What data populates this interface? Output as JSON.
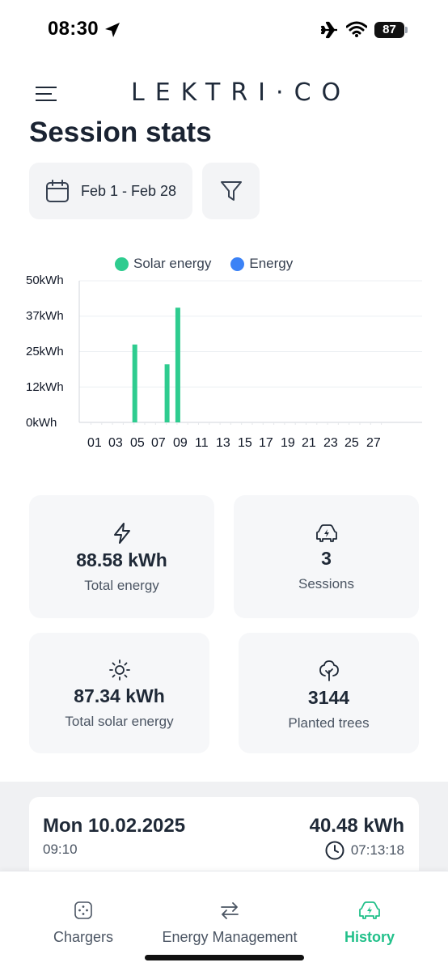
{
  "status_bar": {
    "time": "08:30",
    "battery": "87"
  },
  "header": {
    "logo": "LEKTRI·CO"
  },
  "page": {
    "title": "Session stats"
  },
  "filters": {
    "date_range": "Feb 1 - Feb 28"
  },
  "colors": {
    "solar": "#2ecc8f",
    "energy": "#3b82f6",
    "accent": "#22c08a"
  },
  "chart_data": {
    "type": "bar",
    "legend": [
      "Solar energy",
      "Energy"
    ],
    "legend_position": "top",
    "y_ticks": [
      "50kWh",
      "37kWh",
      "25kWh",
      "12kWh",
      "0kWh"
    ],
    "ylim": [
      0,
      50
    ],
    "x_ticks": [
      "01",
      "03",
      "05",
      "07",
      "09",
      "11",
      "13",
      "15",
      "17",
      "19",
      "21",
      "23",
      "25",
      "27"
    ],
    "x_days": 28,
    "grid": true,
    "series": [
      {
        "name": "Solar energy",
        "points": [
          {
            "day": 5,
            "value": 27.5
          },
          {
            "day": 8,
            "value": 20.5
          },
          {
            "day": 9,
            "value": 40.5
          }
        ]
      },
      {
        "name": "Energy",
        "points": []
      }
    ]
  },
  "stats": {
    "total_energy": {
      "value": "88.58 kWh",
      "label": "Total energy"
    },
    "sessions": {
      "value": "3",
      "label": "Sessions"
    },
    "total_solar": {
      "value": "87.34 kWh",
      "label": "Total solar energy"
    },
    "planted_trees": {
      "value": "3144",
      "label": "Planted trees"
    }
  },
  "session": {
    "date": "Mon 10.02.2025",
    "time": "09:10",
    "energy": "40.48 kWh",
    "duration": "07:13:18"
  },
  "nav": {
    "chargers": "Chargers",
    "energy_management": "Energy Management",
    "history": "History"
  }
}
